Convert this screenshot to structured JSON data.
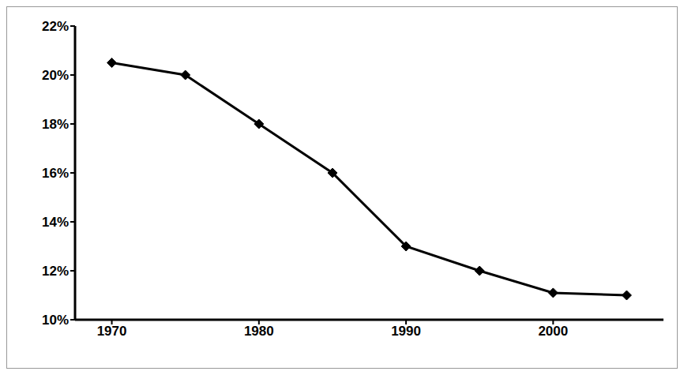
{
  "chart_data": {
    "type": "line",
    "x": [
      1970,
      1975,
      1980,
      1985,
      1990,
      1995,
      2000,
      2005
    ],
    "values": [
      20.5,
      20,
      18,
      16,
      13,
      12,
      11.1,
      11
    ],
    "color": "#000000",
    "marker": "diamond",
    "xlim": [
      1967.5,
      2007.5
    ],
    "xticks": [
      1970,
      1980,
      1990,
      2000
    ],
    "ylim": [
      10,
      22
    ],
    "yticks": [
      {
        "value": 10,
        "label": "10%"
      },
      {
        "value": 12,
        "label": "12%"
      },
      {
        "value": 14,
        "label": "14%"
      },
      {
        "value": 16,
        "label": "16%"
      },
      {
        "value": 18,
        "label": "18%"
      },
      {
        "value": 20,
        "label": "20%"
      },
      {
        "value": 22,
        "label": "22%"
      }
    ],
    "grid": false
  }
}
